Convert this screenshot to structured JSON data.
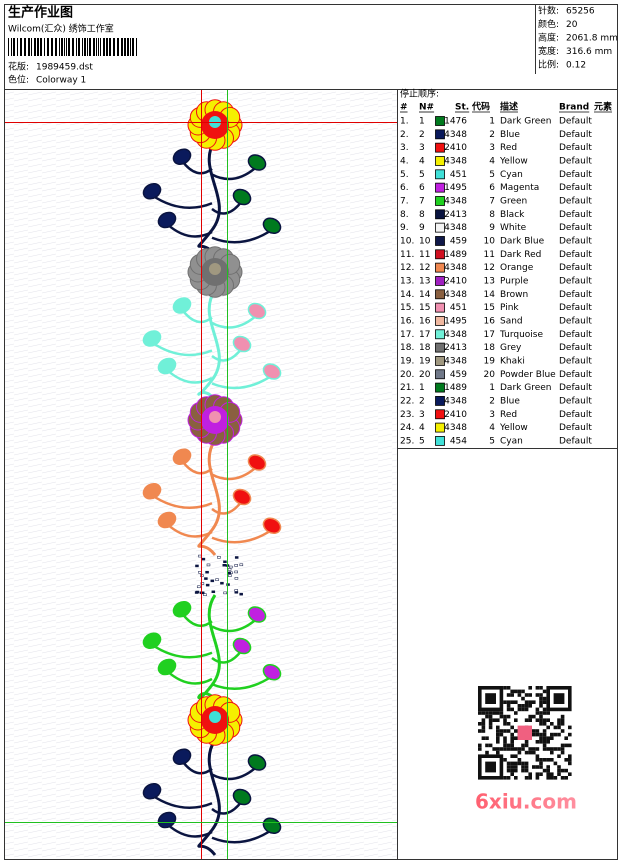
{
  "header": {
    "title": "生产作业图",
    "studio": "Wilcom(汇众) 绣饰工作室",
    "design_label": "花版:",
    "design": "1989459.dst",
    "colorway_label": "色位:",
    "colorway": "Colorway 1"
  },
  "stats": [
    {
      "label": "针数:",
      "value": "65256"
    },
    {
      "label": "颜色:",
      "value": "20"
    },
    {
      "label": "高度:",
      "value": "2061.8 mm"
    },
    {
      "label": "宽度:",
      "value": "316.6 mm"
    },
    {
      "label": "比例:",
      "value": "0.12"
    }
  ],
  "table": {
    "title": "停止顺序:",
    "columns": [
      "#",
      "N#",
      "St.",
      "代码",
      "描述",
      "Brand",
      "元素"
    ],
    "rows": [
      {
        "no": "1.",
        "n": 1,
        "color": "#007a1e",
        "st": 1476,
        "code": 1,
        "desc": "Dark Green",
        "brand": "Default"
      },
      {
        "no": "2.",
        "n": 2,
        "color": "#0a1a5c",
        "st": 4348,
        "code": 2,
        "desc": "Blue",
        "brand": "Default"
      },
      {
        "no": "3.",
        "n": 3,
        "color": "#f01010",
        "st": 2410,
        "code": 3,
        "desc": "Red",
        "brand": "Default"
      },
      {
        "no": "4.",
        "n": 4,
        "color": "#f5f000",
        "st": 4348,
        "code": 4,
        "desc": "Yellow",
        "brand": "Default"
      },
      {
        "no": "5.",
        "n": 5,
        "color": "#40e0d8",
        "st": 451,
        "code": 5,
        "desc": "Cyan",
        "brand": "Default"
      },
      {
        "no": "6.",
        "n": 6,
        "color": "#c020e0",
        "st": 1495,
        "code": 6,
        "desc": "Magenta",
        "brand": "Default"
      },
      {
        "no": "7.",
        "n": 7,
        "color": "#20d020",
        "st": 4348,
        "code": 7,
        "desc": "Green",
        "brand": "Default"
      },
      {
        "no": "8.",
        "n": 8,
        "color": "#0a1440",
        "st": 2413,
        "code": 8,
        "desc": "Black",
        "brand": "Default"
      },
      {
        "no": "9.",
        "n": 9,
        "color": "#f4f4f4",
        "st": 4348,
        "code": 9,
        "desc": "White",
        "brand": "Default"
      },
      {
        "no": "10.",
        "n": 10,
        "color": "#101848",
        "st": 459,
        "code": 10,
        "desc": "Dark Blue",
        "brand": "Default"
      },
      {
        "no": "11.",
        "n": 11,
        "color": "#d01020",
        "st": 1489,
        "code": 11,
        "desc": "Dark Red",
        "brand": "Default"
      },
      {
        "no": "12.",
        "n": 12,
        "color": "#f08850",
        "st": 4348,
        "code": 12,
        "desc": "Orange",
        "brand": "Default"
      },
      {
        "no": "13.",
        "n": 13,
        "color": "#a020c0",
        "st": 2410,
        "code": 13,
        "desc": "Purple",
        "brand": "Default"
      },
      {
        "no": "14.",
        "n": 14,
        "color": "#8a6040",
        "st": 4348,
        "code": 14,
        "desc": "Brown",
        "brand": "Default"
      },
      {
        "no": "15.",
        "n": 15,
        "color": "#f090b0",
        "st": 451,
        "code": 15,
        "desc": "Pink",
        "brand": "Default"
      },
      {
        "no": "16.",
        "n": 16,
        "color": "#f0b8a0",
        "st": 1495,
        "code": 16,
        "desc": "Sand",
        "brand": "Default"
      },
      {
        "no": "17.",
        "n": 17,
        "color": "#70f0d8",
        "st": 4348,
        "code": 17,
        "desc": "Turquoise",
        "brand": "Default"
      },
      {
        "no": "18.",
        "n": 18,
        "color": "#707070",
        "st": 2413,
        "code": 18,
        "desc": "Grey",
        "brand": "Default"
      },
      {
        "no": "19.",
        "n": 19,
        "color": "#a09880",
        "st": 4348,
        "code": 19,
        "desc": "Khaki",
        "brand": "Default"
      },
      {
        "no": "20.",
        "n": 20,
        "color": "#707888",
        "st": 459,
        "code": 20,
        "desc": "Powder Blue",
        "brand": "Default"
      },
      {
        "no": "21.",
        "n": 1,
        "color": "#007a1e",
        "st": 1489,
        "code": 1,
        "desc": "Dark Green",
        "brand": "Default"
      },
      {
        "no": "22.",
        "n": 2,
        "color": "#0a1a5c",
        "st": 4348,
        "code": 2,
        "desc": "Blue",
        "brand": "Default"
      },
      {
        "no": "23.",
        "n": 3,
        "color": "#f01010",
        "st": 2410,
        "code": 3,
        "desc": "Red",
        "brand": "Default"
      },
      {
        "no": "24.",
        "n": 4,
        "color": "#f5f000",
        "st": 4348,
        "code": 4,
        "desc": "Yellow",
        "brand": "Default"
      },
      {
        "no": "25.",
        "n": 5,
        "color": "#40e0d8",
        "st": 454,
        "code": 5,
        "desc": "Cyan",
        "brand": "Default"
      }
    ]
  },
  "watermark": "6xiu.com"
}
